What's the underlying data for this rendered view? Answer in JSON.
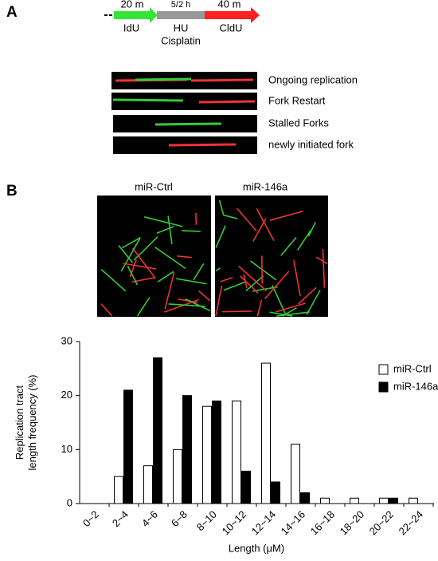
{
  "panels": {
    "a": "A",
    "b": "B"
  },
  "schematic": {
    "idu_time": "20 m",
    "treat_time": "5/2 h",
    "cldu_time": "40 m",
    "idu": "IdU",
    "hu": "HU",
    "cisplatin": "Cisplatin",
    "cldu": "CldU"
  },
  "fibers": [
    "Ongoing replication",
    "Fork Restart",
    "Stalled Forks",
    "newly initiated fork"
  ],
  "micrographs": [
    "miR-Ctrl",
    "miR-146a"
  ],
  "chart_data": {
    "type": "bar",
    "y_label": [
      "Replication tract",
      "length frequency (%)"
    ],
    "x_label": "Length (μM)",
    "categories": [
      "0~2",
      "2~4",
      "4~6",
      "6~8",
      "8~10",
      "10~12",
      "12~14",
      "14~16",
      "16~18",
      "18~20",
      "20~22",
      "22~24"
    ],
    "series": [
      {
        "name": "miR-Ctrl",
        "color": "#ffffff",
        "values": [
          0,
          5,
          7,
          10,
          18,
          19,
          26,
          11,
          1,
          1,
          1,
          1
        ]
      },
      {
        "name": "miR-146a",
        "color": "#000000",
        "values": [
          0,
          21,
          27,
          20,
          19,
          6,
          4,
          2,
          0,
          0,
          1,
          0
        ]
      }
    ],
    "ylim": [
      0,
      30
    ],
    "yticks": [
      0,
      10,
      20,
      30
    ],
    "legend": "top-right"
  }
}
